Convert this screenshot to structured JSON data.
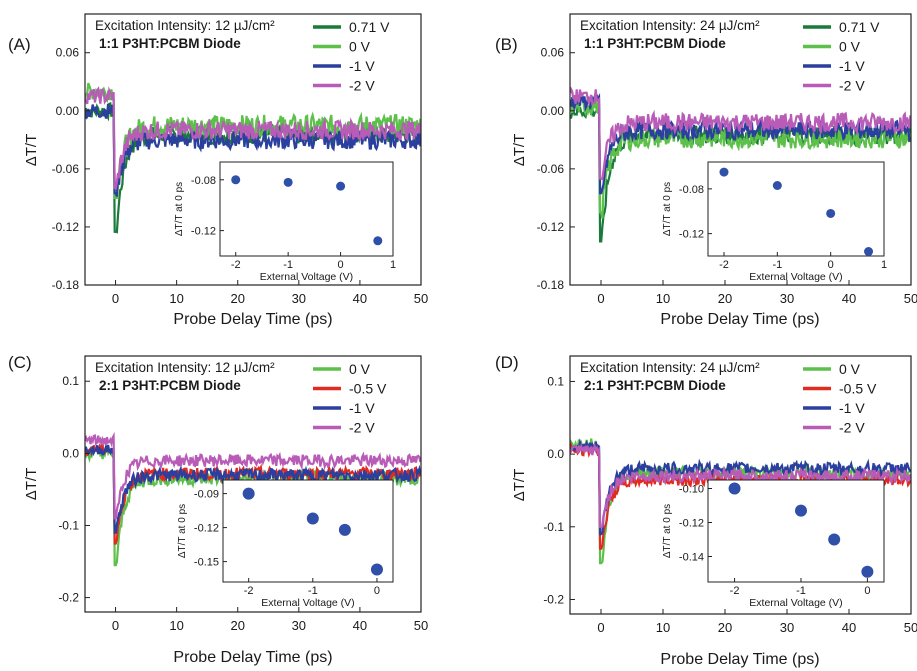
{
  "colors": {
    "V0_71": "#1a7a3a",
    "V0": "#5cc04a",
    "Vm0_5": "#e02a22",
    "Vm1": "#2b3f9e",
    "Vm2": "#b85cb8",
    "inset_marker": "#2f4fa8"
  },
  "chart_data": [
    {
      "type": "line",
      "panel_label": "(A)",
      "title": "Excitation Intensity: 12 µJ/cm²",
      "subtitle": "1:1 P3HT:PCBM Diode",
      "xlabel": "Probe Delay Time (ps)",
      "ylabel": "ΔT/T",
      "xlim": [
        -5,
        50
      ],
      "ylim": [
        -0.18,
        0.1
      ],
      "xticks": [
        "0",
        "10",
        "20",
        "30",
        "40",
        "50"
      ],
      "yticks": [
        "0.06",
        "0.00",
        "-0.06",
        "-0.12",
        "-0.18"
      ],
      "legend_position": "top-right",
      "series": [
        {
          "name": "0.71 V",
          "color_key": "V0_71",
          "pre": 0.0,
          "peak": -0.125,
          "plateau": -0.025,
          "noise": 0.008
        },
        {
          "name": "0 V",
          "color_key": "V0",
          "pre": 0.02,
          "peak": -0.09,
          "plateau": -0.015,
          "noise": 0.009
        },
        {
          "name": "-1 V",
          "color_key": "Vm1",
          "pre": 0.0,
          "peak": -0.085,
          "plateau": -0.03,
          "noise": 0.008
        },
        {
          "name": "-2 V",
          "color_key": "Vm2",
          "pre": 0.015,
          "peak": -0.08,
          "plateau": -0.02,
          "noise": 0.008
        }
      ],
      "inset": {
        "xlabel": "External Voltage (V)",
        "ylabel": "ΔT/T at 0 ps",
        "xlim": [
          -2.3,
          1.0
        ],
        "ylim": [
          -0.14,
          -0.066
        ],
        "xticks": [
          "-2",
          "-1",
          "0",
          "1"
        ],
        "yticks": [
          "-0.08",
          "-0.12"
        ],
        "points": [
          {
            "x": -2,
            "y": -0.08
          },
          {
            "x": -1,
            "y": -0.082
          },
          {
            "x": 0,
            "y": -0.085
          },
          {
            "x": 0.71,
            "y": -0.128
          }
        ]
      }
    },
    {
      "type": "line",
      "panel_label": "(B)",
      "title": "Excitation Intensity: 24 µJ/cm²",
      "subtitle": "1:1 P3HT:PCBM Diode",
      "xlabel": "Probe Delay Time (ps)",
      "ylabel": "ΔT/T",
      "xlim": [
        -5,
        50
      ],
      "ylim": [
        -0.18,
        0.1
      ],
      "xticks": [
        "0",
        "10",
        "20",
        "30",
        "40",
        "50"
      ],
      "yticks": [
        "0.06",
        "0.00",
        "-0.06",
        "-0.12",
        "-0.18"
      ],
      "legend_position": "top-right",
      "series": [
        {
          "name": "0.71 V",
          "color_key": "V0_71",
          "pre": 0.0,
          "peak": -0.135,
          "plateau": -0.025,
          "noise": 0.008
        },
        {
          "name": "0 V",
          "color_key": "V0",
          "pre": 0.005,
          "peak": -0.105,
          "plateau": -0.028,
          "noise": 0.009
        },
        {
          "name": "-1 V",
          "color_key": "Vm1",
          "pre": 0.01,
          "peak": -0.085,
          "plateau": -0.02,
          "noise": 0.008
        },
        {
          "name": "-2 V",
          "color_key": "Vm2",
          "pre": 0.015,
          "peak": -0.07,
          "plateau": -0.012,
          "noise": 0.008
        }
      ],
      "inset": {
        "xlabel": "External Voltage (V)",
        "ylabel": "ΔT/T at 0 ps",
        "xlim": [
          -2.3,
          1.0
        ],
        "ylim": [
          -0.14,
          -0.056
        ],
        "xticks": [
          "-2",
          "-1",
          "0",
          "1"
        ],
        "yticks": [
          "-0.08",
          "-0.12"
        ],
        "points": [
          {
            "x": -2,
            "y": -0.065
          },
          {
            "x": -1,
            "y": -0.077
          },
          {
            "x": 0,
            "y": -0.102
          },
          {
            "x": 0.71,
            "y": -0.136
          }
        ]
      }
    },
    {
      "type": "line",
      "panel_label": "(C)",
      "title": "Excitation Intensity: 12 µJ/cm²",
      "subtitle": "2:1 P3HT:PCBM Diode",
      "xlabel": "Probe Delay Time (ps)",
      "ylabel": "ΔT/T",
      "xlim": [
        -5,
        50
      ],
      "ylim": [
        -0.22,
        0.135
      ],
      "xticks": [
        "0",
        "10",
        "20",
        "30",
        "40",
        "50"
      ],
      "yticks": [
        "0.1",
        "0.0",
        "-0.1",
        "-0.2"
      ],
      "legend_position": "top-right",
      "series": [
        {
          "name": "0 V",
          "color_key": "V0",
          "pre": 0.0,
          "peak": -0.155,
          "plateau": -0.035,
          "noise": 0.008
        },
        {
          "name": "-0.5 V",
          "color_key": "Vm0_5",
          "pre": 0.005,
          "peak": -0.125,
          "plateau": -0.028,
          "noise": 0.007
        },
        {
          "name": "-1 V",
          "color_key": "Vm1",
          "pre": 0.005,
          "peak": -0.11,
          "plateau": -0.03,
          "noise": 0.007
        },
        {
          "name": "-2 V",
          "color_key": "Vm2",
          "pre": 0.018,
          "peak": -0.09,
          "plateau": -0.01,
          "noise": 0.007
        }
      ],
      "inset": {
        "xlabel": "External Voltage (V)",
        "ylabel": "ΔT/T at 0 ps",
        "xlim": [
          -2.4,
          0.25
        ],
        "ylim": [
          -0.168,
          -0.078
        ],
        "xticks": [
          "-2",
          "-1",
          "0"
        ],
        "yticks": [
          "-0.09",
          "-0.12",
          "-0.15"
        ],
        "points": [
          {
            "x": -2,
            "y": -0.09
          },
          {
            "x": -1,
            "y": -0.112
          },
          {
            "x": -0.5,
            "y": -0.122
          },
          {
            "x": 0,
            "y": -0.157
          }
        ]
      }
    },
    {
      "type": "line",
      "panel_label": "(D)",
      "title": "Excitation Intensity: 24 µJ/cm²",
      "subtitle": "2:1 P3HT:PCBM Diode",
      "xlabel": "Probe Delay Time (ps)",
      "ylabel": "ΔT/T",
      "xlim": [
        -5,
        50
      ],
      "ylim": [
        -0.22,
        0.135
      ],
      "xticks": [
        "0",
        "10",
        "20",
        "30",
        "40",
        "50"
      ],
      "yticks": [
        "0.1",
        "0.0",
        "-0.1",
        "-0.2"
      ],
      "legend_position": "top-right",
      "series": [
        {
          "name": "0 V",
          "color_key": "V0",
          "pre": 0.015,
          "peak": -0.15,
          "plateau": -0.025,
          "noise": 0.007
        },
        {
          "name": "-0.5 V",
          "color_key": "Vm0_5",
          "pre": 0.005,
          "peak": -0.13,
          "plateau": -0.035,
          "noise": 0.007
        },
        {
          "name": "-1 V",
          "color_key": "Vm1",
          "pre": 0.01,
          "peak": -0.11,
          "plateau": -0.02,
          "noise": 0.007
        },
        {
          "name": "-2 V",
          "color_key": "Vm2",
          "pre": 0.005,
          "peak": -0.1,
          "plateau": -0.03,
          "noise": 0.007
        }
      ],
      "inset": {
        "xlabel": "External Voltage (V)",
        "ylabel": "ΔT/T at 0 ps",
        "xlim": [
          -2.4,
          0.25
        ],
        "ylim": [
          -0.155,
          -0.095
        ],
        "xticks": [
          "-2",
          "-1",
          "0"
        ],
        "yticks": [
          "-0.10",
          "-0.12",
          "-0.14"
        ],
        "points": [
          {
            "x": -2,
            "y": -0.1
          },
          {
            "x": -1,
            "y": -0.113
          },
          {
            "x": -0.5,
            "y": -0.13
          },
          {
            "x": 0,
            "y": -0.149
          }
        ]
      }
    }
  ]
}
